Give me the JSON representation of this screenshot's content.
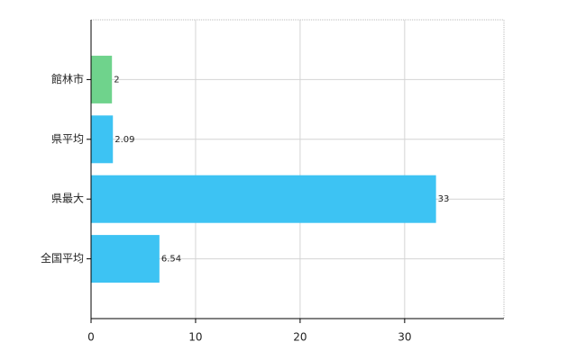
{
  "chart_data": {
    "type": "bar",
    "orientation": "horizontal",
    "categories": [
      "館林市",
      "県平均",
      "県最大",
      "全国平均"
    ],
    "values": [
      2,
      2.09,
      33,
      6.54
    ],
    "colors": [
      "#6fd38c",
      "#3dc3f3",
      "#3dc3f3",
      "#3dc3f3"
    ],
    "xlim": [
      0,
      39.5
    ],
    "xticks": [
      0,
      10,
      20,
      30
    ],
    "grid": true
  }
}
